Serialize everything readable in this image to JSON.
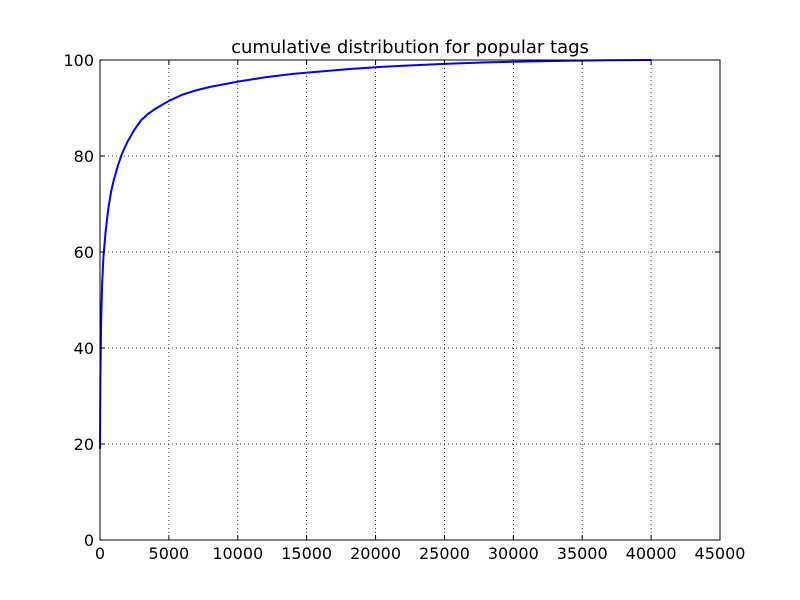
{
  "chart_data": {
    "type": "line",
    "title": "cumulative distribution for popular tags",
    "xlabel": "",
    "ylabel": "",
    "xlim": [
      0,
      45000
    ],
    "ylim": [
      0,
      100
    ],
    "x_ticks": [
      0,
      5000,
      10000,
      15000,
      20000,
      25000,
      30000,
      35000,
      40000,
      45000
    ],
    "y_ticks": [
      0,
      20,
      40,
      60,
      80,
      100
    ],
    "x_tick_labels": [
      "0",
      "5000",
      "10000",
      "15000",
      "20000",
      "25000",
      "30000",
      "35000",
      "40000",
      "45000"
    ],
    "y_tick_labels": [
      "0",
      "20",
      "40",
      "60",
      "80",
      "100"
    ],
    "grid": true,
    "grid_style": "dotted",
    "legend": "none",
    "series": [
      {
        "color": "#0000ff",
        "x": [
          0,
          30,
          80,
          150,
          250,
          400,
          600,
          800,
          1000,
          1300,
          1600,
          2000,
          2500,
          3000,
          3500,
          4000,
          5000,
          6000,
          7000,
          8000,
          10000,
          12000,
          14000,
          16000,
          18000,
          20000,
          22000,
          25000,
          28000,
          31000,
          34000,
          37000,
          40000
        ],
        "y": [
          19,
          34,
          45,
          53,
          59,
          64,
          69,
          72.5,
          75,
          78,
          80.5,
          83,
          85.5,
          87.5,
          88.8,
          89.8,
          91.5,
          92.8,
          93.7,
          94.4,
          95.5,
          96.4,
          97.1,
          97.6,
          98.1,
          98.5,
          98.8,
          99.2,
          99.5,
          99.7,
          99.85,
          99.95,
          100
        ]
      }
    ]
  }
}
